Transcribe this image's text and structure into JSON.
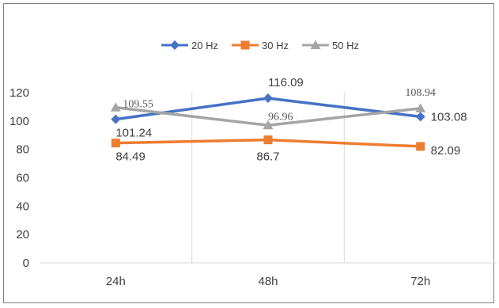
{
  "chart_data": {
    "type": "line",
    "categories": [
      "24h",
      "48h",
      "72h"
    ],
    "ylim": [
      0,
      120
    ],
    "yticks": [
      0,
      20,
      40,
      60,
      80,
      100,
      120
    ],
    "grid": "vertical-only",
    "legend_position": "top",
    "series": [
      {
        "name": "20 Hz",
        "values": [
          101.24,
          116.09,
          103.08
        ],
        "color": "#4472C4",
        "marker": "diamond",
        "labels": [
          "101.24",
          "116.09",
          "103.08"
        ]
      },
      {
        "name": "30 Hz",
        "values": [
          84.49,
          86.7,
          82.09
        ],
        "color": "#ED7D31",
        "marker": "square",
        "labels": [
          "84.49",
          "86.7",
          "82.09"
        ]
      },
      {
        "name": "50 Hz",
        "values": [
          109.55,
          96.96,
          108.94
        ],
        "color": "#A5A5A5",
        "marker": "triangle",
        "labels": [
          "109.55",
          "96.96",
          "108.94"
        ]
      }
    ]
  }
}
